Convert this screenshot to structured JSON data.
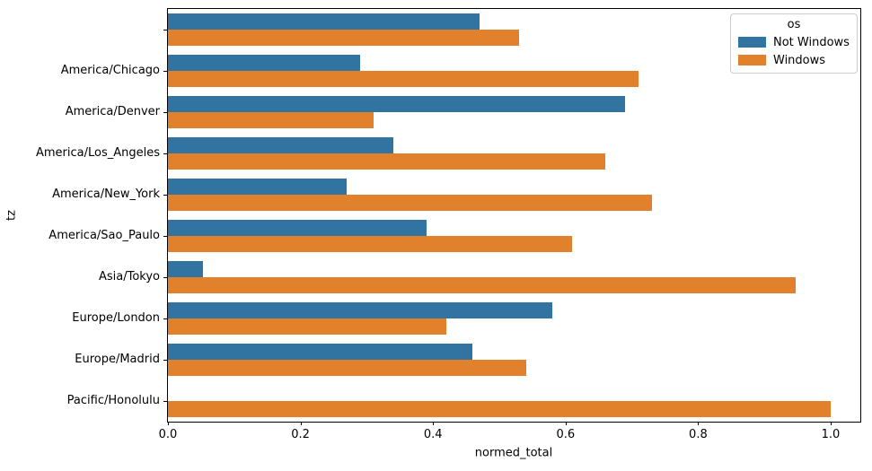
{
  "chart_data": {
    "type": "bar",
    "orientation": "horizontal",
    "title": "",
    "xlabel": "normed_total",
    "ylabel": "tz",
    "categories": [
      "",
      "America/Chicago",
      "America/Denver",
      "America/Los_Angeles",
      "America/New_York",
      "America/Sao_Paulo",
      "Asia/Tokyo",
      "Europe/London",
      "Europe/Madrid",
      "Pacific/Honolulu"
    ],
    "series": [
      {
        "name": "Not Windows",
        "color": "#3274A1",
        "values": [
          0.47,
          0.29,
          0.69,
          0.34,
          0.27,
          0.39,
          0.053,
          0.58,
          0.46,
          0.0
        ]
      },
      {
        "name": "Windows",
        "color": "#E1812C",
        "values": [
          0.53,
          0.71,
          0.31,
          0.66,
          0.73,
          0.61,
          0.947,
          0.42,
          0.54,
          1.0
        ]
      }
    ],
    "xlim": [
      0.0,
      1.045
    ],
    "xticks": [
      0.0,
      0.2,
      0.4,
      0.6,
      0.8,
      1.0
    ],
    "xtick_labels": [
      "0.0",
      "0.2",
      "0.4",
      "0.6",
      "0.8",
      "1.0"
    ],
    "grid": false,
    "legend": {
      "title": "os",
      "position": "upper-right"
    }
  },
  "colors": {
    "spine": "#000000",
    "text": "#000000",
    "legend_border": "#cccccc",
    "background": "#ffffff"
  }
}
